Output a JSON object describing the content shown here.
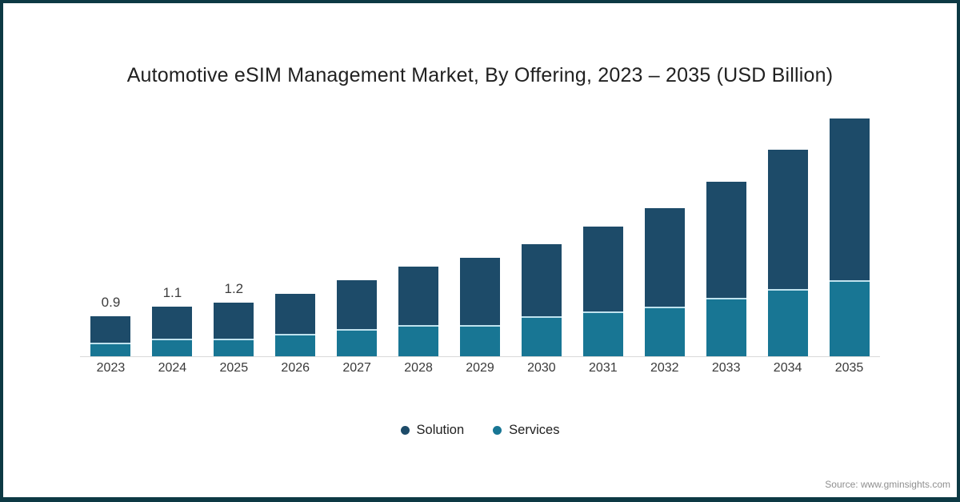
{
  "frame": {
    "border_color": "#0d3944",
    "background": "#ffffff"
  },
  "title": "Automotive eSIM Management Market, By Offering, 2023 – 2035 (USD Billion)",
  "source": "Source: www.gminsights.com",
  "legend": [
    {
      "label": "Solution",
      "color": "#1d4b69"
    },
    {
      "label": "Services",
      "color": "#187694"
    }
  ],
  "chart_data": {
    "type": "bar",
    "stacked": true,
    "title": "Automotive eSIM Management Market, By Offering, 2023 – 2035 (USD Billion)",
    "units": "USD Billion",
    "xlabel": "",
    "ylabel": "",
    "grid": false,
    "legend_position": "bottom",
    "axis_line_color": "#d9d9d9",
    "categories": [
      "2023",
      "2024",
      "2025",
      "2026",
      "2027",
      "2028",
      "2029",
      "2030",
      "2031",
      "2032",
      "2033",
      "2034",
      "2035"
    ],
    "series": [
      {
        "name": "Solution",
        "color": "#1d4b69",
        "values": [
          0.6,
          0.7,
          0.8,
          0.9,
          1.1,
          1.3,
          1.5,
          1.6,
          1.9,
          2.2,
          2.6,
          3.1,
          3.6
        ]
      },
      {
        "name": "Services",
        "color": "#187694",
        "values": [
          0.3,
          0.4,
          0.4,
          0.5,
          0.6,
          0.7,
          0.7,
          0.9,
          1.0,
          1.1,
          1.3,
          1.5,
          1.7
        ]
      }
    ],
    "totals": [
      0.9,
      1.1,
      1.2,
      1.4,
      1.7,
      2.0,
      2.2,
      2.5,
      2.9,
      3.3,
      3.9,
      4.6,
      5.3
    ],
    "data_labels": [
      "0.9",
      "1.1",
      "1.2",
      null,
      null,
      null,
      null,
      null,
      null,
      null,
      null,
      null,
      null
    ],
    "ylim": [
      0,
      5.5
    ]
  }
}
